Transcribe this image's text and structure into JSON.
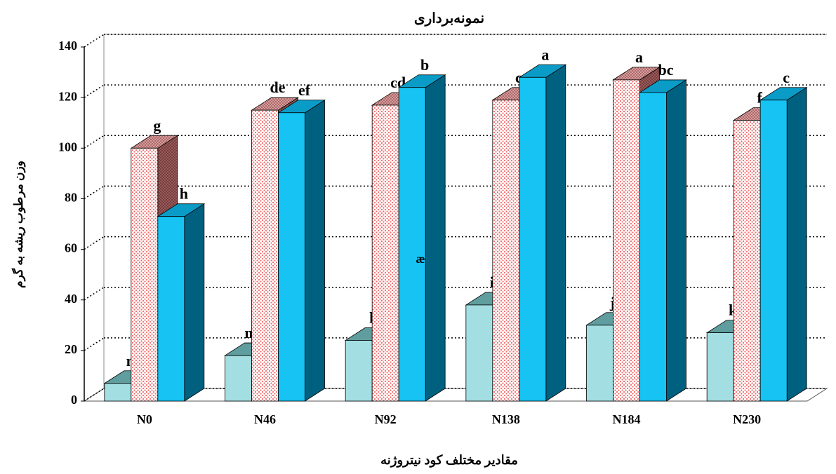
{
  "chart_data": {
    "type": "bar3d",
    "title": "نمونه‌برداری",
    "x_label": "مقادیر مختلف کود نیتروژنه",
    "y_label": "وزن مرطوب ریشه به گرم",
    "annotation": "æ",
    "categories": [
      "N0",
      "N46",
      "N92",
      "N138",
      "N184",
      "N230"
    ],
    "series": [
      {
        "color": "#a3dfe2",
        "values": [
          7,
          18,
          24,
          38,
          30,
          27
        ],
        "labels": [
          "n",
          "m",
          "l",
          "i",
          "j",
          "k"
        ]
      },
      {
        "color": "#ff9c9c",
        "values": [
          100,
          115,
          117,
          119,
          127,
          111
        ],
        "labels": [
          "g",
          "de",
          "cd",
          "c",
          "a",
          "f"
        ]
      },
      {
        "color": "#16c3f2",
        "values": [
          73,
          114,
          124,
          128,
          122,
          119
        ],
        "labels": [
          "h",
          "ef",
          "b",
          "a",
          "bc",
          "c"
        ]
      }
    ],
    "ylim": [
      0,
      140
    ],
    "yticks": [
      0,
      20,
      40,
      60,
      80,
      100,
      120,
      140
    ],
    "grid": true
  }
}
